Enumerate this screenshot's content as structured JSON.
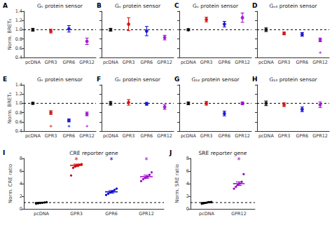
{
  "chart_data": [
    {
      "type": "errorbar",
      "label": "A",
      "title": "Gₛ protein sensor",
      "categories": [
        "pcDNA",
        "GPR3",
        "GPR6",
        "GPR12"
      ],
      "values": [
        1.0,
        0.97,
        1.02,
        0.75
      ],
      "errors": [
        0.03,
        0.04,
        0.07,
        0.07
      ],
      "colors": [
        "#000000",
        "#cc0000",
        "#0000cc",
        "#9900cc"
      ],
      "ylim": [
        0.4,
        1.4
      ],
      "yticks": [
        0.4,
        0.6,
        0.8,
        {
          "value": 1.0,
          "label": "1.0"
        },
        1.2,
        1.4
      ],
      "ylabel": "Norm. BRET₀",
      "hline": 1.0,
      "annotations": [],
      "grid": false
    },
    {
      "type": "errorbar",
      "label": "B",
      "title": "Gₒ protein sensor",
      "categories": [
        "pcDNA",
        "GPR3",
        "GPR6",
        "GPR12"
      ],
      "values": [
        1.0,
        1.12,
        0.97,
        0.83
      ],
      "errors": [
        0.03,
        0.14,
        0.1,
        0.05
      ],
      "colors": [
        "#000000",
        "#cc0000",
        "#0000cc",
        "#9900cc"
      ],
      "ylim": [
        0.4,
        1.4
      ],
      "yticks": [
        0.4,
        0.6,
        0.8,
        1.0,
        1.2,
        1.4
      ],
      "tick_labels": "x",
      "hline": 1.0,
      "annotations": [],
      "grid": false
    },
    {
      "type": "errorbar",
      "label": "C",
      "title": "Gₒ protein sensor",
      "categories": [
        "pcDNA",
        "GPR3",
        "GPR6",
        "GPR12"
      ],
      "values": [
        1.0,
        1.22,
        1.12,
        1.26
      ],
      "errors": [
        0.02,
        0.05,
        0.06,
        0.1
      ],
      "colors": [
        "#000000",
        "#cc0000",
        "#0000cc",
        "#9900cc"
      ],
      "ylim": [
        0.4,
        1.4
      ],
      "yticks": [
        0.4,
        0.6,
        0.8,
        1.0,
        1.2,
        1.4
      ],
      "tick_labels": "x",
      "hline": 1.0,
      "annotations": [],
      "grid": false
    },
    {
      "type": "errorbar",
      "label": "D",
      "title": "Gₒ₄ protein sensor",
      "categories": [
        "pcDNA",
        "GPR3",
        "GPR6",
        "GPR12"
      ],
      "values": [
        1.0,
        0.92,
        0.9,
        0.78
      ],
      "errors": [
        0.04,
        0.03,
        0.04,
        0.04
      ],
      "colors": [
        "#000000",
        "#cc0000",
        "#0000cc",
        "#9900cc"
      ],
      "ylim": [
        0.4,
        1.4
      ],
      "yticks": [
        0.4,
        0.6,
        0.8,
        1.0,
        1.2,
        1.4
      ],
      "tick_labels": "x",
      "hline": 1.0,
      "annotations": [
        {
          "x": "GPR12",
          "y": 0.41,
          "text": "*"
        }
      ],
      "grid": false
    },
    {
      "type": "errorbar",
      "label": "E",
      "title": "Gₛ protein sensor",
      "categories": [
        "pcDNA",
        "GPR3",
        "GPR6",
        "GPR12"
      ],
      "values": [
        1.0,
        0.8,
        0.63,
        0.77
      ],
      "errors": [
        0.02,
        0.04,
        0.03,
        0.04
      ],
      "colors": [
        "#000000",
        "#cc0000",
        "#0000cc",
        "#9900cc"
      ],
      "ylim": [
        0.4,
        1.4
      ],
      "yticks": [
        0.4,
        0.6,
        0.8,
        {
          "value": 1.0,
          "label": "1.0"
        },
        1.2,
        1.4
      ],
      "ylabel": "Norm. BRET₀",
      "hline": 1.0,
      "annotations": [
        {
          "x": "GPR3",
          "y": 0.41,
          "text": "*"
        },
        {
          "x": "GPR6",
          "y": 0.41,
          "text": "*"
        },
        {
          "x": "GPR12",
          "y": 0.41,
          "text": "*"
        }
      ],
      "grid": false
    },
    {
      "type": "errorbar",
      "label": "F",
      "title": "Gₛ protein sensor",
      "categories": [
        "pcDNA",
        "GPR3",
        "GPR6",
        "GPR12"
      ],
      "values": [
        1.0,
        1.02,
        0.99,
        0.92
      ],
      "errors": [
        0.04,
        0.06,
        0.03,
        0.05
      ],
      "colors": [
        "#000000",
        "#cc0000",
        "#0000cc",
        "#9900cc"
      ],
      "ylim": [
        0.4,
        1.4
      ],
      "yticks": [
        0.4,
        0.6,
        0.8,
        1.0,
        1.2,
        1.4
      ],
      "tick_labels": "x",
      "hline": 1.0,
      "annotations": [],
      "grid": false
    },
    {
      "type": "errorbar",
      "label": "G",
      "title": "G₁₂ protein sensor",
      "categories": [
        "pcDNA",
        "GPR3",
        "GPR6",
        "GPR12"
      ],
      "values": [
        1.0,
        1.0,
        0.78,
        1.0
      ],
      "errors": [
        0.03,
        0.04,
        0.05,
        0.03
      ],
      "colors": [
        "#000000",
        "#cc0000",
        "#0000cc",
        "#9900cc"
      ],
      "ylim": [
        0.4,
        1.4
      ],
      "yticks": [
        0.4,
        0.6,
        0.8,
        1.0,
        1.2,
        1.4
      ],
      "tick_labels": "x",
      "hline": 1.0,
      "annotations": [],
      "grid": false
    },
    {
      "type": "errorbar",
      "label": "H",
      "title": "G₁₃ protein sensor",
      "categories": [
        "pcDNA",
        "GPR3",
        "GPR6",
        "GPR12"
      ],
      "values": [
        1.0,
        0.97,
        0.87,
        0.97
      ],
      "errors": [
        0.05,
        0.04,
        0.05,
        0.06
      ],
      "colors": [
        "#000000",
        "#cc0000",
        "#0000cc",
        "#9900cc"
      ],
      "ylim": [
        0.4,
        1.4
      ],
      "yticks": [
        0.4,
        0.6,
        0.8,
        1.0,
        1.2,
        1.4
      ],
      "tick_labels": "x",
      "hline": 1.0,
      "annotations": [],
      "grid": false
    },
    {
      "type": "strip",
      "label": "I",
      "title": "CRE reporter gene",
      "categories": [
        "pcDNA",
        "GPR3",
        "GPR6",
        "GPR12"
      ],
      "values": [
        1.0,
        6.9,
        2.7,
        5.1
      ],
      "errors": [
        0.06,
        0.2,
        0.2,
        0.25
      ],
      "points": [
        [
          0.82,
          0.87,
          0.92,
          0.97,
          1.02,
          1.06
        ],
        [
          5.3,
          6.5,
          6.7,
          6.9,
          7.0,
          7.1
        ],
        [
          2.2,
          2.4,
          2.6,
          2.8,
          3.0,
          3.2
        ],
        [
          4.4,
          4.7,
          4.9,
          5.1,
          5.4,
          5.8
        ]
      ],
      "colors": [
        "#000000",
        "#cc0000",
        "#0000cc",
        "#9900cc"
      ],
      "ylim": [
        0,
        8
      ],
      "yticks": [
        0,
        2,
        4,
        6,
        8
      ],
      "ylabel": "Norm. CRE ratio",
      "hline": 1.0,
      "annotations": [
        {
          "x": "GPR3",
          "y": 7.2,
          "text": "*"
        },
        {
          "x": "GPR6",
          "y": 7.2,
          "text": "*"
        },
        {
          "x": "GPR12",
          "y": 7.2,
          "text": "*"
        }
      ],
      "grid": false
    },
    {
      "type": "strip",
      "label": "J",
      "title": "SRE reporter gene",
      "categories": [
        "pcDNA",
        "GPR12"
      ],
      "values": [
        1.0,
        4.0
      ],
      "errors": [
        0.05,
        0.28
      ],
      "points": [
        [
          0.82,
          0.87,
          0.92,
          0.97,
          1.02,
          1.06,
          1.08,
          1.1
        ],
        [
          3.2,
          3.5,
          3.8,
          4.0,
          4.3,
          5.5
        ]
      ],
      "colors": [
        "#000000",
        "#9900cc"
      ],
      "ylim": [
        0,
        8
      ],
      "yticks": [
        0,
        2,
        4,
        6,
        8
      ],
      "ylabel": "Norm. SRE ratio",
      "hline": 1.0,
      "annotations": [
        {
          "x": "GPR12",
          "y": 7.2,
          "text": "*"
        }
      ],
      "grid": false
    }
  ]
}
